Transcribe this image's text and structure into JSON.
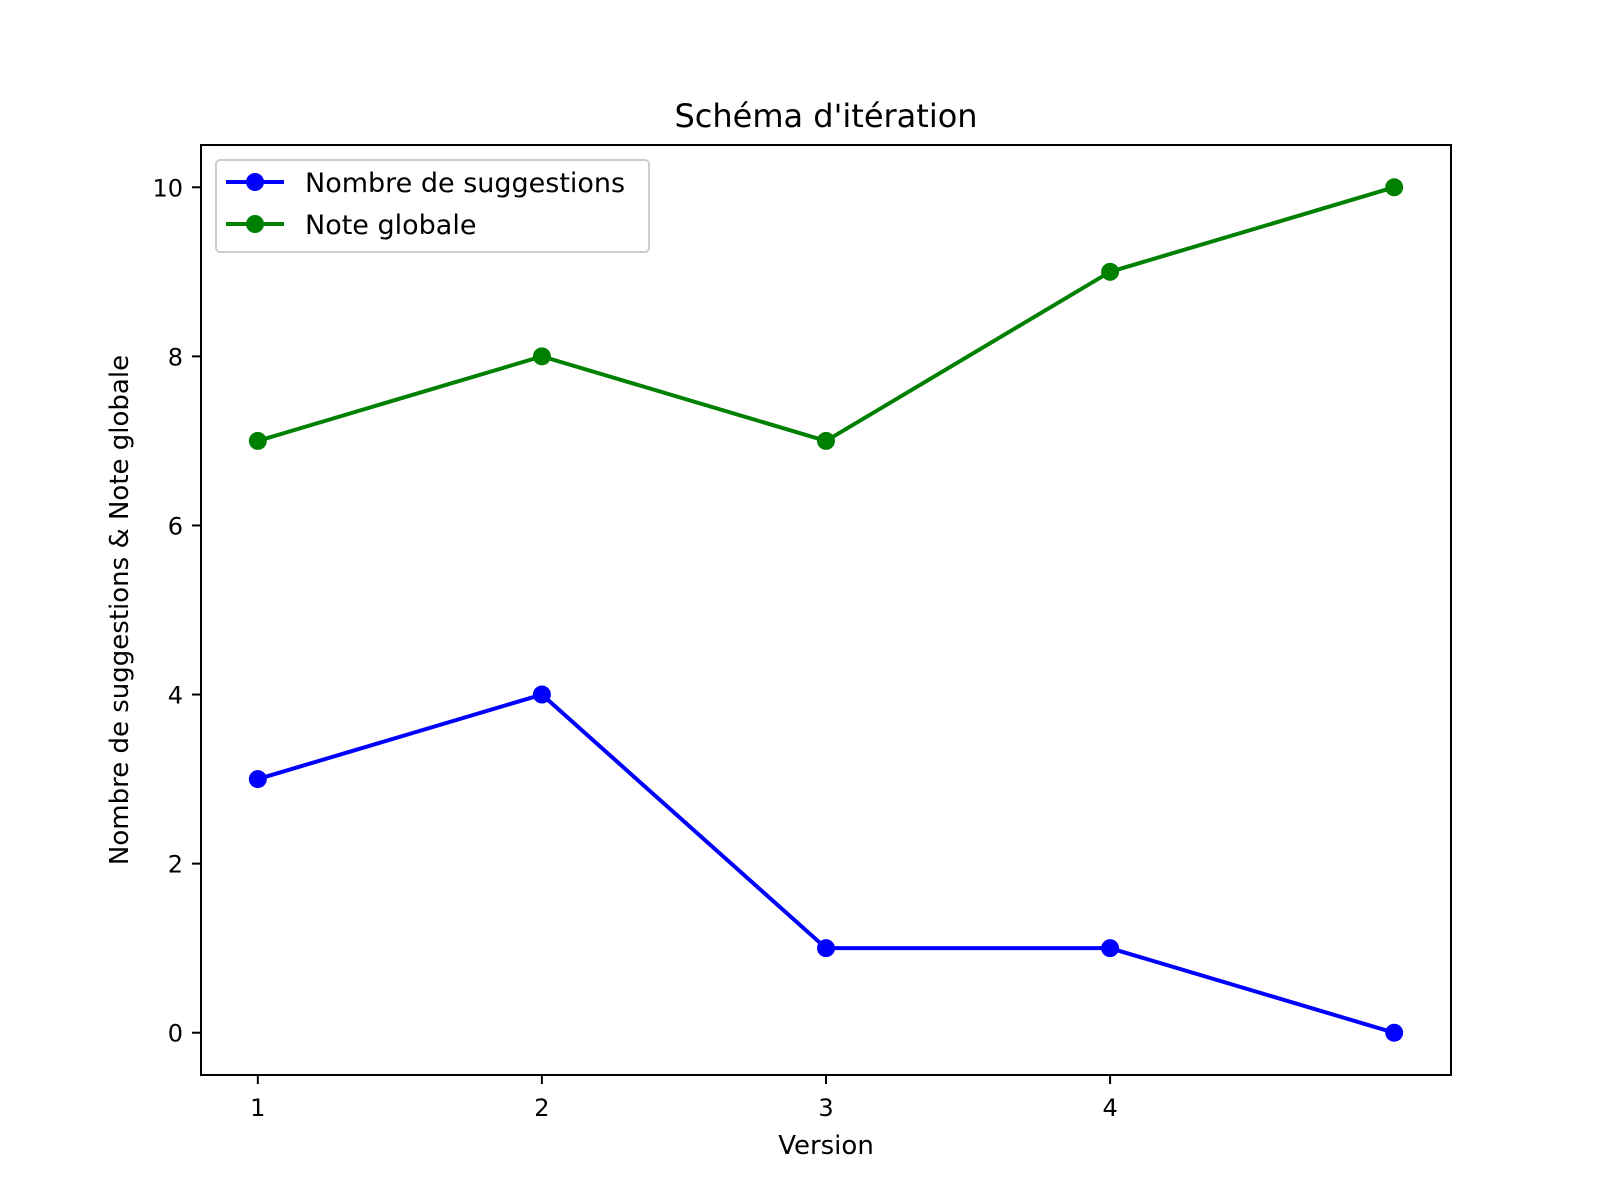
{
  "chart_data": {
    "type": "line",
    "title": "Schéma d'itération",
    "xlabel": "Version",
    "ylabel": "Nombre de suggestions & Note globale",
    "x": [
      1,
      2,
      3,
      4,
      5
    ],
    "xticks": [
      1,
      2,
      3,
      4
    ],
    "xlim": [
      0.8,
      5.2
    ],
    "yticks": [
      0,
      2,
      4,
      6,
      8,
      10
    ],
    "ylim": [
      -0.5,
      10.5
    ],
    "grid": false,
    "legend_position": "upper left",
    "series": [
      {
        "name": "Nombre de suggestions",
        "color": "#0000ff",
        "marker": "circle",
        "values": [
          3,
          4,
          1,
          1,
          0
        ]
      },
      {
        "name": "Note globale",
        "color": "#008000",
        "marker": "circle",
        "values": [
          7,
          8,
          7,
          9,
          10
        ]
      }
    ]
  }
}
